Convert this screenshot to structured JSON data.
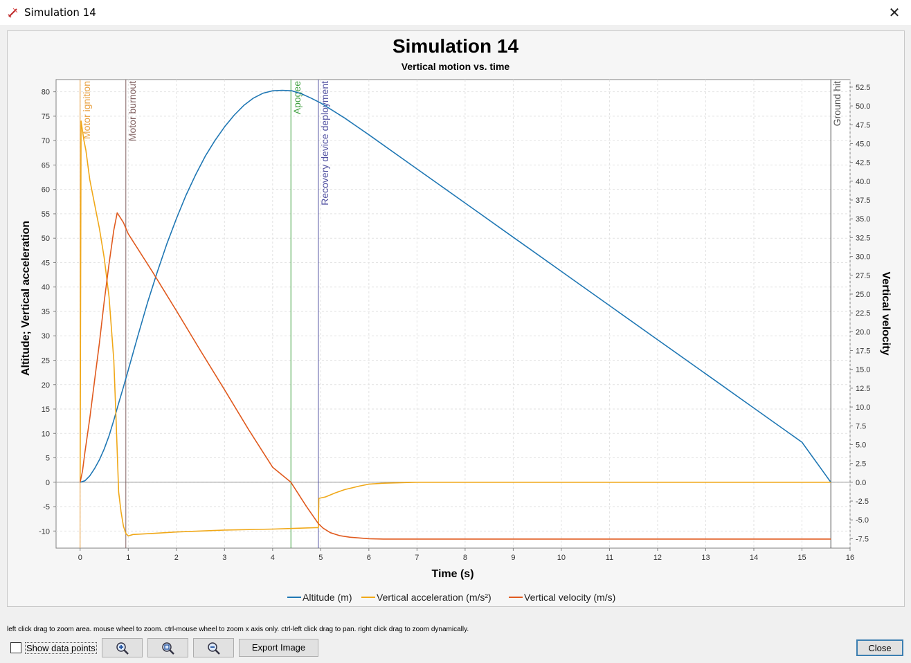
{
  "window": {
    "title": "Simulation 14",
    "close_glyph": "✕"
  },
  "icons": {
    "app": "rocket-icon",
    "zoom_in": "zoom-in-icon",
    "zoom_fit": "zoom-fit-icon",
    "zoom_out": "zoom-out-icon"
  },
  "hint": "left click drag to zoom area. mouse wheel to zoom. ctrl-mouse wheel to zoom x axis only. ctrl-left click drag to pan.  right click drag to zoom dynamically.",
  "controls": {
    "show_data_points": "Show data points",
    "show_data_points_checked": false,
    "export_image": "Export Image",
    "close": "Close"
  },
  "chart_data": {
    "type": "line",
    "title": "Simulation 14",
    "subtitle": "Vertical motion vs. time",
    "xlabel": "Time (s)",
    "ylabel_left": "Altitude; Vertical acceleration",
    "ylabel_right": "Vertical velocity",
    "xlim": [
      -0.5,
      16
    ],
    "ylim_left": [
      -13.5,
      82.5
    ],
    "ylim_right": [
      -8.75,
      53.5
    ],
    "x_ticks": [
      0,
      1,
      2,
      3,
      4,
      5,
      6,
      7,
      8,
      9,
      10,
      11,
      12,
      13,
      14,
      15,
      16
    ],
    "y_left_ticks": [
      -10,
      -5,
      0,
      5,
      10,
      15,
      20,
      25,
      30,
      35,
      40,
      45,
      50,
      55,
      60,
      65,
      70,
      75,
      80
    ],
    "y_right_ticks": [
      -7.5,
      -5.0,
      -2.5,
      0.0,
      2.5,
      5.0,
      7.5,
      10.0,
      12.5,
      15.0,
      17.5,
      20.0,
      22.5,
      25.0,
      27.5,
      30.0,
      32.5,
      35.0,
      37.5,
      40.0,
      42.5,
      45.0,
      47.5,
      50.0,
      52.5
    ],
    "grid": true,
    "legend_position": "bottom",
    "series": [
      {
        "name": "Altitude (m)",
        "axis": "left",
        "color": "#1f77b4",
        "x": [
          0,
          0.1,
          0.2,
          0.3,
          0.4,
          0.5,
          0.6,
          0.7,
          0.8,
          0.9,
          1.0,
          1.2,
          1.4,
          1.6,
          1.8,
          2.0,
          2.2,
          2.4,
          2.6,
          2.8,
          3.0,
          3.2,
          3.4,
          3.6,
          3.8,
          4.0,
          4.2,
          4.4,
          4.6,
          4.8,
          5.0,
          5.5,
          6,
          7,
          8,
          9,
          10,
          11,
          12,
          13,
          14,
          15,
          15.6
        ],
        "y": [
          0,
          0.3,
          1.3,
          2.8,
          4.6,
          6.8,
          9.5,
          12.7,
          16.2,
          19.5,
          23.0,
          30.0,
          36.8,
          43.0,
          48.8,
          54.0,
          58.8,
          63.0,
          66.8,
          70.0,
          72.8,
          75.2,
          77.2,
          78.7,
          79.7,
          80.2,
          80.3,
          80.2,
          79.6,
          78.7,
          77.7,
          74.6,
          71.2,
          64.2,
          57.2,
          50.2,
          43.2,
          36.2,
          29.2,
          22.2,
          15.2,
          8.2,
          0
        ]
      },
      {
        "name": "Vertical acceleration (m/s²)",
        "axis": "left",
        "color": "#f0a818",
        "x": [
          0,
          0.02,
          0.05,
          0.08,
          0.12,
          0.2,
          0.3,
          0.4,
          0.5,
          0.6,
          0.7,
          0.75,
          0.8,
          0.85,
          0.9,
          0.95,
          1.0,
          1.1,
          1.5,
          2,
          3,
          4,
          4.9,
          4.95,
          4.96,
          5.1,
          5.3,
          5.5,
          5.8,
          6.0,
          6.3,
          7,
          8,
          9,
          10,
          11,
          12,
          13,
          14,
          15,
          15.6
        ],
        "y": [
          0,
          74,
          72,
          70,
          68,
          62,
          57,
          52,
          46,
          38,
          25,
          12,
          -2,
          -6,
          -9,
          -10.5,
          -11,
          -10.7,
          -10.5,
          -10.2,
          -9.8,
          -9.6,
          -9.3,
          -9.3,
          -3.3,
          -3.0,
          -2.2,
          -1.5,
          -0.8,
          -0.4,
          -0.2,
          0,
          0,
          0,
          0,
          0,
          0,
          0,
          0,
          0,
          0
        ]
      },
      {
        "name": "Vertical velocity (m/s)",
        "axis": "right",
        "color": "#e05a1e",
        "x": [
          0,
          0.05,
          0.1,
          0.2,
          0.3,
          0.4,
          0.5,
          0.6,
          0.7,
          0.77,
          0.9,
          1.0,
          1.5,
          2,
          2.5,
          3,
          3.5,
          4,
          4.38,
          4.7,
          4.95,
          5.05,
          5.2,
          5.4,
          5.6,
          5.8,
          6.0,
          6.3,
          6.5,
          7,
          8,
          9,
          10,
          11,
          12,
          13,
          14,
          15,
          15.6
        ],
        "y": [
          0,
          1.5,
          4,
          8.5,
          13.5,
          18.5,
          24,
          29,
          33.5,
          35.8,
          34.5,
          33,
          28.0,
          22.8,
          17.5,
          12.3,
          7.0,
          2.0,
          0,
          -3.2,
          -5.5,
          -6.1,
          -6.7,
          -7.1,
          -7.3,
          -7.4,
          -7.5,
          -7.55,
          -7.55,
          -7.55,
          -7.55,
          -7.55,
          -7.55,
          -7.55,
          -7.55,
          -7.55,
          -7.55,
          -7.55,
          -7.55
        ]
      }
    ],
    "events": [
      {
        "label": "Motor ignition",
        "x": 0.0,
        "color": "#e8a040"
      },
      {
        "label": "Motor burnout",
        "x": 0.95,
        "color": "#806060"
      },
      {
        "label": "Apogee",
        "x": 4.38,
        "color": "#40a040"
      },
      {
        "label": "Recovery device deployment",
        "x": 4.95,
        "color": "#5050a0"
      },
      {
        "label": "Ground hit",
        "x": 15.6,
        "color": "#505050"
      }
    ]
  }
}
